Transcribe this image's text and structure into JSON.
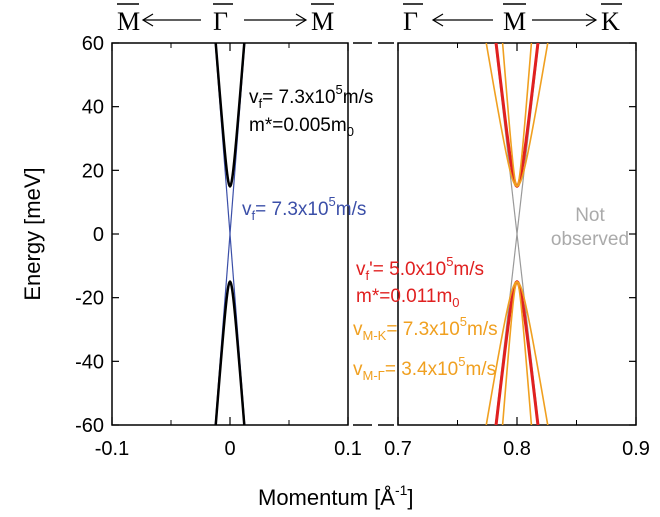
{
  "chart_data": {
    "type": "line",
    "ylabel": "Energy [meV]",
    "xlabel_main": "Momentum [Å",
    "xlabel_exp": "-1",
    "xlabel_close": "]",
    "ylim": [
      -60,
      60
    ],
    "yticks": [
      "60",
      "40",
      "20",
      "0",
      "-20",
      "-40",
      "-60"
    ],
    "panels": [
      {
        "name": "left",
        "xlim": [
          -0.1,
          0.1
        ],
        "xticks": [
          "-0.1",
          "0",
          "0.1"
        ],
        "top_labels": [
          "M",
          "Γ",
          "M"
        ],
        "center_k": 0.0,
        "series": [
          {
            "role": "linear dirac",
            "color": "#3b4fa8",
            "slope_meV_per_inv_A": 4800,
            "gap_meV": 0
          },
          {
            "role": "gapped massive",
            "color": "#000000",
            "gap_half_meV": 15,
            "v_meV_per_inv_A": 4800
          }
        ]
      },
      {
        "name": "right",
        "xlim": [
          0.7,
          0.9
        ],
        "xticks": [
          "0.7",
          "0.8",
          "0.9"
        ],
        "top_labels": [
          "Γ",
          "M",
          "K"
        ],
        "center_k": 0.8,
        "series": [
          {
            "role": "not observed linear",
            "color": "#999999",
            "slope_meV_per_inv_A": 3300
          },
          {
            "role": "gapped massive",
            "color": "#e02020",
            "gap_half_meV": 15,
            "v_meV_per_inv_A": 3300
          },
          {
            "role": "anisotropic M-K",
            "color": "#f0a020",
            "gap_half_meV": 15,
            "v_meV_per_inv_A": 4800
          },
          {
            "role": "anisotropic M-Γ",
            "color": "#f0a020",
            "gap_half_meV": 15,
            "v_meV_per_inv_A": 2250
          }
        ]
      }
    ],
    "annotations": {
      "left_vf_black": {
        "prefix": "v",
        "sub": "f",
        "mid": "= 7.3x10",
        "sup": "5",
        "unit": "m/s"
      },
      "left_mass": {
        "prefix": "m*=0.005m",
        "sub": "0"
      },
      "left_vf_blue": {
        "prefix": "v",
        "sub": "f",
        "mid": "= 7.3x10",
        "sup": "5",
        "unit": "m/s"
      },
      "not_observed_1": "Not",
      "not_observed_2": "observed",
      "right_vf_red": {
        "prefix": "v",
        "sub": "f",
        "mid": "= 5.0x10",
        "sup": "5",
        "unit": "m/s"
      },
      "right_mass": {
        "prefix": "m*=0.011m",
        "sub": "0"
      },
      "right_vmk": {
        "prefix": "v",
        "sub": "M-K",
        "mid": "= 7.3x10",
        "sup": "5",
        "unit": "m/s"
      },
      "right_vmg": {
        "prefix": "v",
        "sub": "M-Γ",
        "mid": "= 3.4x10",
        "sup": "5",
        "unit": "m/s"
      }
    },
    "colors": {
      "black": "#000000",
      "blue": "#3b4fa8",
      "red": "#e02020",
      "orange": "#f0a020",
      "gray": "#999999"
    }
  }
}
